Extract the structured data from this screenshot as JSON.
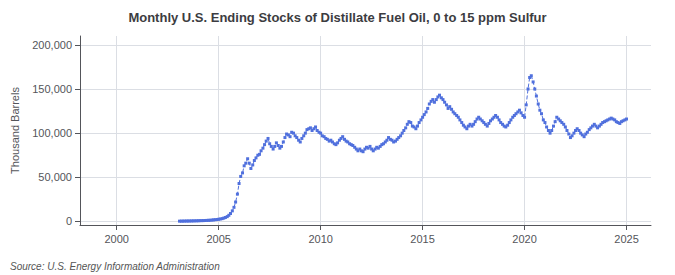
{
  "chart_data": {
    "type": "line",
    "title": "Monthly U.S. Ending Stocks of Distillate Fuel Oil, 0 to 15 ppm Sulfur",
    "ylabel": "Thousand Barrels",
    "source": "Source: U.S. Energy Information Administration",
    "marker": "square",
    "line_style": "dashed",
    "grid": true,
    "xlim": [
      1998.2,
      2026.2
    ],
    "xticks": [
      2000,
      2005,
      2010,
      2015,
      2020,
      2025
    ],
    "ylim": [
      -4000,
      210000
    ],
    "yticks": [
      0,
      {
        "value": 50000,
        "label": "50,000"
      },
      {
        "value": 100000,
        "label": "100,000"
      },
      {
        "value": 150000,
        "label": "150,000"
      },
      {
        "value": 200000,
        "label": "200,000"
      }
    ],
    "x": [
      2003.08,
      2003.17,
      2003.25,
      2003.33,
      2003.42,
      2003.5,
      2003.58,
      2003.67,
      2003.75,
      2003.83,
      2003.92,
      2004.0,
      2004.08,
      2004.17,
      2004.25,
      2004.33,
      2004.42,
      2004.5,
      2004.58,
      2004.67,
      2004.75,
      2004.83,
      2004.92,
      2005.0,
      2005.08,
      2005.17,
      2005.25,
      2005.33,
      2005.42,
      2005.5,
      2005.58,
      2005.67,
      2005.75,
      2005.83,
      2005.92,
      2006.0,
      2006.08,
      2006.17,
      2006.25,
      2006.33,
      2006.42,
      2006.5,
      2006.58,
      2006.67,
      2006.75,
      2006.83,
      2006.92,
      2007.0,
      2007.08,
      2007.17,
      2007.25,
      2007.33,
      2007.42,
      2007.5,
      2007.58,
      2007.67,
      2007.75,
      2007.83,
      2007.92,
      2008.0,
      2008.08,
      2008.17,
      2008.25,
      2008.33,
      2008.42,
      2008.5,
      2008.58,
      2008.67,
      2008.75,
      2008.83,
      2008.92,
      2009.0,
      2009.08,
      2009.17,
      2009.25,
      2009.33,
      2009.42,
      2009.5,
      2009.58,
      2009.67,
      2009.75,
      2009.83,
      2009.92,
      2010.0,
      2010.08,
      2010.17,
      2010.25,
      2010.33,
      2010.42,
      2010.5,
      2010.58,
      2010.67,
      2010.75,
      2010.83,
      2010.92,
      2011.0,
      2011.08,
      2011.17,
      2011.25,
      2011.33,
      2011.42,
      2011.5,
      2011.58,
      2011.67,
      2011.75,
      2011.83,
      2011.92,
      2012.0,
      2012.08,
      2012.17,
      2012.25,
      2012.33,
      2012.42,
      2012.5,
      2012.58,
      2012.67,
      2012.75,
      2012.83,
      2012.92,
      2013.0,
      2013.08,
      2013.17,
      2013.25,
      2013.33,
      2013.42,
      2013.5,
      2013.58,
      2013.67,
      2013.75,
      2013.83,
      2013.92,
      2014.0,
      2014.08,
      2014.17,
      2014.25,
      2014.33,
      2014.42,
      2014.5,
      2014.58,
      2014.67,
      2014.75,
      2014.83,
      2014.92,
      2015.0,
      2015.08,
      2015.17,
      2015.25,
      2015.33,
      2015.42,
      2015.5,
      2015.58,
      2015.67,
      2015.75,
      2015.83,
      2015.92,
      2016.0,
      2016.08,
      2016.17,
      2016.25,
      2016.33,
      2016.42,
      2016.5,
      2016.58,
      2016.67,
      2016.75,
      2016.83,
      2016.92,
      2017.0,
      2017.08,
      2017.17,
      2017.25,
      2017.33,
      2017.42,
      2017.5,
      2017.58,
      2017.67,
      2017.75,
      2017.83,
      2017.92,
      2018.0,
      2018.08,
      2018.17,
      2018.25,
      2018.33,
      2018.42,
      2018.5,
      2018.58,
      2018.67,
      2018.75,
      2018.83,
      2018.92,
      2019.0,
      2019.08,
      2019.17,
      2019.25,
      2019.33,
      2019.42,
      2019.5,
      2019.58,
      2019.67,
      2019.75,
      2019.83,
      2019.92,
      2020.0,
      2020.08,
      2020.17,
      2020.25,
      2020.33,
      2020.42,
      2020.5,
      2020.58,
      2020.67,
      2020.75,
      2020.83,
      2020.92,
      2021.0,
      2021.08,
      2021.17,
      2021.25,
      2021.33,
      2021.42,
      2021.5,
      2021.58,
      2021.67,
      2021.75,
      2021.83,
      2021.92,
      2022.0,
      2022.08,
      2022.17,
      2022.25,
      2022.33,
      2022.42,
      2022.5,
      2022.58,
      2022.67,
      2022.75,
      2022.83,
      2022.92,
      2023.0,
      2023.08,
      2023.17,
      2023.25,
      2023.33,
      2023.42,
      2023.5,
      2023.58,
      2023.67,
      2023.75,
      2023.83,
      2023.92,
      2024.0,
      2024.08,
      2024.17,
      2024.25,
      2024.33,
      2024.42,
      2024.5,
      2024.58,
      2024.67,
      2024.75,
      2024.83,
      2024.92,
      2025.0
    ],
    "values": [
      350,
      380,
      400,
      450,
      500,
      520,
      550,
      600,
      650,
      700,
      750,
      800,
      900,
      950,
      1000,
      1100,
      1200,
      1300,
      1400,
      1600,
      1800,
      2000,
      2200,
      2500,
      2800,
      3200,
      3800,
      4500,
      5500,
      7000,
      9000,
      12000,
      16000,
      22000,
      31000,
      43000,
      51000,
      55000,
      63000,
      66000,
      71000,
      66000,
      60000,
      64000,
      69000,
      72000,
      75000,
      76000,
      80000,
      83000,
      87000,
      91000,
      94000,
      88000,
      85000,
      82000,
      85000,
      89000,
      86000,
      83000,
      85000,
      90000,
      95000,
      99000,
      98000,
      96000,
      101000,
      100000,
      97000,
      95000,
      92000,
      90000,
      94000,
      97000,
      100000,
      104000,
      105000,
      106000,
      103000,
      105000,
      107000,
      103000,
      101000,
      100000,
      97000,
      96000,
      94000,
      93000,
      91000,
      92000,
      90000,
      88000,
      87000,
      89000,
      92000,
      94000,
      96000,
      93000,
      91000,
      90000,
      88000,
      87000,
      86000,
      84000,
      82000,
      80000,
      82000,
      80000,
      79000,
      82000,
      84000,
      83000,
      85000,
      82000,
      80000,
      82000,
      84000,
      83000,
      85000,
      87000,
      88000,
      90000,
      92000,
      95000,
      93000,
      92000,
      90000,
      91000,
      93000,
      95000,
      97000,
      100000,
      103000,
      106000,
      110000,
      113000,
      112000,
      108000,
      107000,
      105000,
      108000,
      112000,
      115000,
      118000,
      121000,
      124000,
      128000,
      133000,
      136000,
      138000,
      135000,
      138000,
      141000,
      143000,
      140000,
      138000,
      135000,
      132000,
      128000,
      130000,
      127000,
      124000,
      122000,
      120000,
      118000,
      115000,
      112000,
      109000,
      107000,
      105000,
      108000,
      110000,
      108000,
      110000,
      113000,
      116000,
      118000,
      116000,
      114000,
      112000,
      110000,
      108000,
      111000,
      114000,
      116000,
      118000,
      120000,
      118000,
      115000,
      112000,
      110000,
      108000,
      107000,
      109000,
      112000,
      115000,
      118000,
      120000,
      122000,
      124000,
      126000,
      123000,
      120000,
      118000,
      132000,
      150000,
      163000,
      165000,
      158000,
      150000,
      142000,
      133000,
      126000,
      122000,
      115000,
      112000,
      107000,
      103000,
      100000,
      103000,
      108000,
      113000,
      118000,
      116000,
      114000,
      112000,
      110000,
      107000,
      103000,
      99000,
      95000,
      97000,
      100000,
      103000,
      105000,
      103000,
      100000,
      98000,
      96000,
      99000,
      101000,
      104000,
      106000,
      108000,
      110000,
      108000,
      106000,
      108000,
      110000,
      112000,
      113000,
      114000,
      115000,
      116000,
      117000,
      116000,
      115000,
      113000,
      112000,
      111000,
      113000,
      114000,
      115000,
      116000
    ]
  }
}
